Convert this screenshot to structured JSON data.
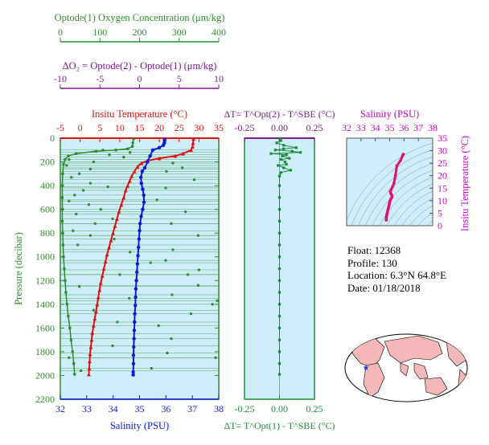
{
  "colors": {
    "oxygen": "#2e8b2e",
    "delta_o2": "#7a1a8c",
    "temperature": "#e01010",
    "salinity": "#0a1ad8",
    "delta_t": "#1c8c3c",
    "ts_salinity": "#cc00cc",
    "ts_profile": "#e0107a",
    "panel_bg": "#cdeef8",
    "land": "#f4b8b8",
    "marker": "#1a3ae0"
  },
  "info": {
    "float": "Float:  12368",
    "profile": "Profile:  130",
    "location": "Location:  6.3°N  64.8°E",
    "date": "Date:  01/18/2018"
  },
  "chart_data": [
    {
      "id": "main-profile",
      "type": "line",
      "ylabel": "Pressure (decibar)",
      "y_ticks": [
        0,
        200,
        400,
        600,
        800,
        1000,
        1200,
        1400,
        1600,
        1800,
        2000,
        2200
      ],
      "ylim": [
        0,
        2200
      ],
      "axes": {
        "oxygen": {
          "label": "Optode(1) Oxygen Concentration (μm/kg)",
          "ticks": [
            0,
            100,
            200,
            300,
            400
          ],
          "range": [
            0,
            400
          ]
        },
        "delta_o2": {
          "label": "ΔO₂ = Optode(2) - Optode(1)   (μm/kg)",
          "ticks": [
            -10,
            -5,
            0,
            5,
            10
          ],
          "range": [
            -10,
            10
          ]
        },
        "temperature": {
          "label": "Insitu Temperature (°C)",
          "ticks": [
            -5,
            0,
            5,
            10,
            15,
            20,
            25,
            30,
            35
          ],
          "range": [
            -5,
            35
          ]
        },
        "salinity": {
          "label": "Salinity (PSU)",
          "ticks": [
            32,
            33,
            34,
            35,
            36,
            37,
            38
          ],
          "range": [
            32,
            38
          ]
        }
      },
      "series": [
        {
          "name": "Insitu Temperature",
          "axis": "temperature",
          "points": [
            [
              28.6,
              5
            ],
            [
              28.5,
              40
            ],
            [
              28.4,
              70
            ],
            [
              28.0,
              100
            ],
            [
              26.0,
              130
            ],
            [
              24.0,
              150
            ],
            [
              20.0,
              170
            ],
            [
              17.0,
              190
            ],
            [
              15.5,
              210
            ],
            [
              14.5,
              240
            ],
            [
              13.7,
              280
            ],
            [
              13.0,
              320
            ],
            [
              12.5,
              360
            ],
            [
              12.0,
              400
            ],
            [
              11.5,
              440
            ],
            [
              11.0,
              500
            ],
            [
              10.4,
              560
            ],
            [
              9.8,
              620
            ],
            [
              9.3,
              680
            ],
            [
              8.8,
              740
            ],
            [
              8.3,
              800
            ],
            [
              7.8,
              860
            ],
            [
              7.3,
              920
            ],
            [
              6.8,
              980
            ],
            [
              6.4,
              1040
            ],
            [
              6.0,
              1100
            ],
            [
              5.6,
              1160
            ],
            [
              5.2,
              1220
            ],
            [
              4.9,
              1280
            ],
            [
              4.6,
              1340
            ],
            [
              4.3,
              1400
            ],
            [
              4.0,
              1460
            ],
            [
              3.7,
              1520
            ],
            [
              3.4,
              1580
            ],
            [
              3.1,
              1640
            ],
            [
              2.9,
              1700
            ],
            [
              2.7,
              1760
            ],
            [
              2.5,
              1820
            ],
            [
              2.4,
              1880
            ],
            [
              2.3,
              1940
            ],
            [
              2.2,
              1990
            ]
          ]
        },
        {
          "name": "Salinity",
          "axis": "salinity",
          "points": [
            [
              35.95,
              5
            ],
            [
              35.95,
              20
            ],
            [
              35.94,
              40
            ],
            [
              35.9,
              60
            ],
            [
              35.75,
              80
            ],
            [
              35.5,
              100
            ],
            [
              35.4,
              150
            ],
            [
              35.3,
              200
            ],
            [
              35.2,
              250
            ],
            [
              35.1,
              280
            ],
            [
              35.05,
              330
            ],
            [
              35.07,
              380
            ],
            [
              35.12,
              430
            ],
            [
              35.16,
              480
            ],
            [
              35.17,
              540
            ],
            [
              35.12,
              600
            ],
            [
              35.06,
              660
            ],
            [
              35.02,
              720
            ],
            [
              35.0,
              780
            ],
            [
              34.98,
              850
            ],
            [
              34.96,
              920
            ],
            [
              34.94,
              990
            ],
            [
              34.92,
              1060
            ],
            [
              34.9,
              1130
            ],
            [
              34.88,
              1200
            ],
            [
              34.86,
              1270
            ],
            [
              34.85,
              1340
            ],
            [
              34.84,
              1410
            ],
            [
              34.82,
              1480
            ],
            [
              34.81,
              1550
            ],
            [
              34.8,
              1620
            ],
            [
              34.79,
              1690
            ],
            [
              34.78,
              1760
            ],
            [
              34.77,
              1830
            ],
            [
              34.77,
              1900
            ],
            [
              34.76,
              1970
            ],
            [
              34.76,
              1995
            ]
          ]
        },
        {
          "name": "Optode(1) Oxygen",
          "axis": "oxygen",
          "points": [
            [
              185,
              5
            ],
            [
              183,
              40
            ],
            [
              182,
              70
            ],
            [
              170,
              90
            ],
            [
              140,
              100
            ],
            [
              90,
              110
            ],
            [
              40,
              130
            ],
            [
              20,
              150
            ],
            [
              12,
              180
            ],
            [
              8,
              220
            ],
            [
              6,
              300
            ],
            [
              5,
              400
            ],
            [
              5,
              500
            ],
            [
              5,
              600
            ],
            [
              5,
              700
            ],
            [
              6,
              800
            ],
            [
              7,
              900
            ],
            [
              8,
              1000
            ],
            [
              10,
              1100
            ],
            [
              12,
              1200
            ],
            [
              14,
              1300
            ],
            [
              17,
              1400
            ],
            [
              20,
              1500
            ],
            [
              24,
              1600
            ],
            [
              27,
              1700
            ],
            [
              31,
              1800
            ],
            [
              34,
              1900
            ],
            [
              36,
              1990
            ]
          ]
        },
        {
          "name": "ΔO2 scatter",
          "axis": "delta_o2",
          "points": [
            [
              -4.6,
              100
            ],
            [
              -1.2,
              120
            ],
            [
              -3.8,
              140
            ],
            [
              -2.0,
              160
            ],
            [
              -8.9,
              180
            ],
            [
              -5.8,
              200
            ],
            [
              -9.2,
              230
            ],
            [
              -6.2,
              260
            ],
            [
              -7.6,
              300
            ],
            [
              -8.6,
              330
            ],
            [
              -6.2,
              380
            ],
            [
              -4.0,
              410
            ],
            [
              -7.1,
              440
            ],
            [
              -8.2,
              480
            ],
            [
              -8.9,
              530
            ],
            [
              -6.4,
              560
            ],
            [
              -4.9,
              600
            ],
            [
              -8.0,
              640
            ],
            [
              -3.4,
              680
            ],
            [
              -5.6,
              720
            ],
            [
              -8.4,
              780
            ],
            [
              -6.2,
              820
            ],
            [
              -3.2,
              850
            ],
            [
              -7.8,
              900
            ],
            [
              -1.2,
              960
            ],
            [
              1.4,
              1050
            ],
            [
              -2.5,
              1150
            ],
            [
              -7.6,
              1250
            ],
            [
              -1.3,
              1350
            ],
            [
              -5.8,
              1450
            ],
            [
              -2.8,
              1550
            ],
            [
              -6.0,
              1650
            ],
            [
              -3.4,
              1750
            ],
            [
              -8.9,
              1850
            ],
            [
              -7.4,
              1960
            ],
            [
              4.2,
              210
            ],
            [
              5.4,
              250
            ],
            [
              3.4,
              280
            ],
            [
              6.9,
              350
            ],
            [
              3.3,
              420
            ],
            [
              2.2,
              520
            ],
            [
              5.8,
              620
            ],
            [
              4.0,
              720
            ],
            [
              7.4,
              820
            ],
            [
              4.2,
              940
            ],
            [
              3.3,
              1030
            ],
            [
              6.1,
              1150
            ],
            [
              7.4,
              1240
            ],
            [
              4.1,
              1320
            ],
            [
              9.2,
              1400
            ],
            [
              6.5,
              1480
            ],
            [
              9.8,
              1370
            ],
            [
              2.4,
              1580
            ],
            [
              4.0,
              1690
            ],
            [
              3.5,
              1810
            ],
            [
              1.5,
              1940
            ],
            [
              9.6,
              1850
            ],
            [
              7.5,
              1110
            ]
          ]
        }
      ]
    },
    {
      "id": "delta-t",
      "type": "line",
      "top_label": "ΔT= T^Opt(2) - T^SBE (°C)",
      "bottom_label": "ΔT= T^Opt(1) - T^SBE (°C)",
      "x_ticks": [
        -0.25,
        0.0,
        0.25
      ],
      "xlim": [
        -0.25,
        0.25
      ],
      "ylim": [
        0,
        2200
      ],
      "series": [
        {
          "name": "ΔT profile",
          "points": [
            [
              0.0,
              5
            ],
            [
              0.01,
              20
            ],
            [
              -0.02,
              40
            ],
            [
              0.03,
              60
            ],
            [
              0.12,
              80
            ],
            [
              0.03,
              90
            ],
            [
              -0.03,
              100
            ],
            [
              0.09,
              110
            ],
            [
              0.15,
              120
            ],
            [
              -0.06,
              130
            ],
            [
              0.05,
              140
            ],
            [
              0.02,
              150
            ],
            [
              0.07,
              170
            ],
            [
              0.01,
              180
            ],
            [
              0.04,
              200
            ],
            [
              0.05,
              220
            ],
            [
              -0.01,
              230
            ],
            [
              0.03,
              250
            ],
            [
              0.08,
              270
            ],
            [
              0.01,
              290
            ],
            [
              0.0,
              320
            ],
            [
              0.0,
              400
            ],
            [
              0.0,
              500
            ],
            [
              0.0,
              600
            ],
            [
              0.0,
              700
            ],
            [
              0.0,
              800
            ],
            [
              0.0,
              900
            ],
            [
              0.0,
              1000
            ],
            [
              0.0,
              1100
            ],
            [
              0.0,
              1200
            ],
            [
              0.0,
              1300
            ],
            [
              0.0,
              1400
            ],
            [
              0.0,
              1500
            ],
            [
              0.0,
              1600
            ],
            [
              0.0,
              1700
            ],
            [
              0.0,
              1800
            ],
            [
              0.0,
              1900
            ],
            [
              0.0,
              1990
            ]
          ]
        }
      ]
    },
    {
      "id": "ts-diagram",
      "type": "scatter",
      "title": "Salinity (PSU)",
      "ylabel": "Insitu Temperature (°C)",
      "x_ticks": [
        32,
        33,
        34,
        35,
        36,
        37,
        38
      ],
      "y_ticks": [
        0,
        5,
        10,
        15,
        20,
        25,
        30,
        35
      ],
      "xlim": [
        32,
        38
      ],
      "ylim": [
        0,
        35
      ],
      "series": [
        {
          "name": "T-S profile",
          "points": [
            [
              35.95,
              28.6
            ],
            [
              35.9,
              28.0
            ],
            [
              35.75,
              26.0
            ],
            [
              35.5,
              24.0
            ],
            [
              35.4,
              20.0
            ],
            [
              35.3,
              17.0
            ],
            [
              35.2,
              15.5
            ],
            [
              35.1,
              14.5
            ],
            [
              35.05,
              13.7
            ],
            [
              35.07,
              13.0
            ],
            [
              35.12,
              12.5
            ],
            [
              35.16,
              12.0
            ],
            [
              35.17,
              11.5
            ],
            [
              35.12,
              11.0
            ],
            [
              35.06,
              10.4
            ],
            [
              35.02,
              9.8
            ],
            [
              35.0,
              9.3
            ],
            [
              34.98,
              8.8
            ],
            [
              34.96,
              8.3
            ],
            [
              34.94,
              7.8
            ],
            [
              34.92,
              7.3
            ],
            [
              34.9,
              6.8
            ],
            [
              34.88,
              6.4
            ],
            [
              34.86,
              6.0
            ],
            [
              34.85,
              5.6
            ],
            [
              34.84,
              5.2
            ],
            [
              34.82,
              4.9
            ],
            [
              34.81,
              4.6
            ],
            [
              34.8,
              4.3
            ],
            [
              34.79,
              4.0
            ],
            [
              34.78,
              3.7
            ],
            [
              34.77,
              3.4
            ],
            [
              34.77,
              3.1
            ],
            [
              34.76,
              2.9
            ],
            [
              34.76,
              2.5
            ],
            [
              34.76,
              2.2
            ]
          ]
        }
      ]
    }
  ]
}
